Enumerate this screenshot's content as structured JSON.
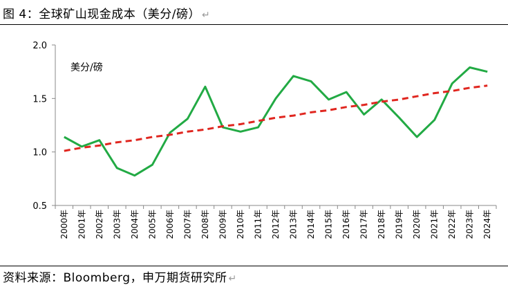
{
  "figure": {
    "title": "图 4：全球矿山现金成本（美分/磅）",
    "source": "资料来源：Bloomberg，申万期货研究所",
    "paragraph_mark": "↵"
  },
  "chart_data": {
    "type": "line",
    "unit_label": "美分/磅",
    "categories": [
      "2000年",
      "2001年",
      "2002年",
      "2003年",
      "2004年",
      "2005年",
      "2006年",
      "2007年",
      "2008年",
      "2009年",
      "2010年",
      "2011年",
      "2012年",
      "2013年",
      "2014年",
      "2015年",
      "2016年",
      "2017年",
      "2018年",
      "2019年",
      "2020年",
      "2021年",
      "2022年",
      "2023年",
      "2024年"
    ],
    "series": [
      {
        "values": [
          1.14,
          1.05,
          1.11,
          0.85,
          0.78,
          0.88,
          1.18,
          1.31,
          1.61,
          1.23,
          1.19,
          1.23,
          1.5,
          1.71,
          1.66,
          1.49,
          1.56,
          1.35,
          1.49,
          1.32,
          1.14,
          1.3,
          1.64,
          1.79,
          1.75
        ],
        "color": "#22aa44",
        "style": "solid"
      },
      {
        "values": [
          1.01,
          1.04,
          1.06,
          1.09,
          1.11,
          1.14,
          1.16,
          1.19,
          1.21,
          1.24,
          1.26,
          1.29,
          1.32,
          1.34,
          1.37,
          1.39,
          1.42,
          1.44,
          1.47,
          1.49,
          1.52,
          1.55,
          1.57,
          1.6,
          1.62
        ],
        "color": "#e0261f",
        "style": "dashed"
      }
    ],
    "yticks": [
      "0.5",
      "1.0",
      "1.5",
      "2.0"
    ],
    "ylim": [
      0.5,
      2.0
    ],
    "grid": false,
    "legend": "none"
  }
}
